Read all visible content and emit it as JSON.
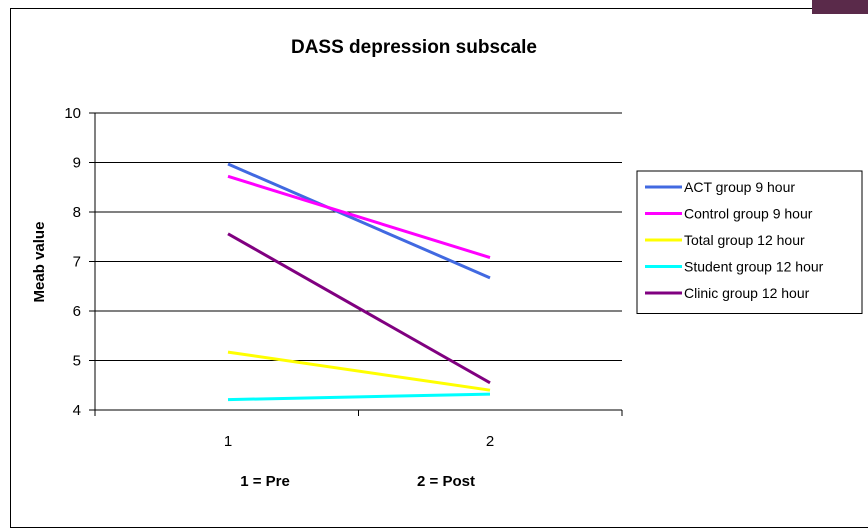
{
  "chart_data": {
    "type": "line",
    "title": "DASS depression subscale",
    "ylabel": "Meab value",
    "x_axis_notes": [
      "1 = Pre",
      "2 = Post"
    ],
    "categories": [
      "1",
      "2"
    ],
    "ylim": [
      4,
      10
    ],
    "yticks": [
      4,
      5,
      6,
      7,
      8,
      9,
      10
    ],
    "grid": true,
    "legend_position": "right",
    "series": [
      {
        "name": "ACT group 9 hour",
        "color": "#4169e1",
        "values": [
          8.97,
          6.67
        ]
      },
      {
        "name": "Control group 9 hour",
        "color": "#ff00ff",
        "values": [
          8.72,
          7.08
        ]
      },
      {
        "name": "Total group 12 hour",
        "color": "#ffff00",
        "values": [
          5.17,
          4.4
        ]
      },
      {
        "name": "Student group 12 hour",
        "color": "#00ffff",
        "values": [
          4.21,
          4.32
        ]
      },
      {
        "name": "Clinic group 12 hour",
        "color": "#800080",
        "values": [
          7.56,
          4.55
        ]
      }
    ]
  }
}
